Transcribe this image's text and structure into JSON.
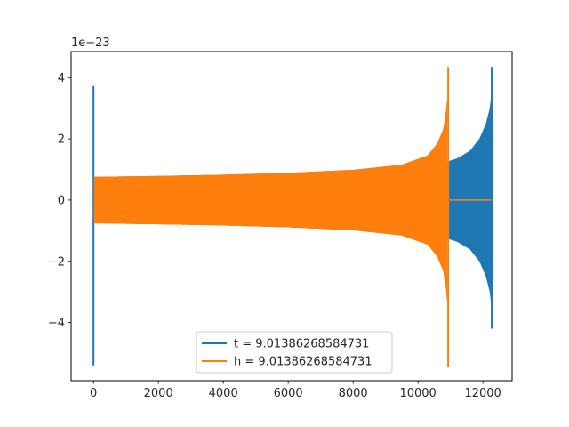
{
  "chart_data": {
    "type": "line",
    "offset_label": "1e−23",
    "x_ticks": [
      0,
      2000,
      4000,
      6000,
      8000,
      10000,
      12000
    ],
    "x_tick_labels": [
      "0",
      "2000",
      "4000",
      "6000",
      "8000",
      "10000",
      "12000"
    ],
    "y_ticks": [
      -4,
      -2,
      0,
      2,
      4
    ],
    "y_tick_labels": [
      "−4",
      "−2",
      "0",
      "2",
      "4"
    ],
    "xlim": [
      -690,
      12900
    ],
    "ylim": [
      -5.9,
      4.85
    ],
    "grid": false,
    "legend_position": "lower center",
    "series": [
      {
        "name": "t = 9.01386268584731",
        "color": "#1f77b4",
        "x_start": 0,
        "x_end": 12272,
        "initial_spike": {
          "x": 0,
          "min": -5.4,
          "max": 3.72
        },
        "envelope": [
          [
            20,
            0.75
          ],
          [
            2000,
            0.78
          ],
          [
            4000,
            0.82
          ],
          [
            6000,
            0.88
          ],
          [
            8000,
            0.98
          ],
          [
            9500,
            1.08
          ],
          [
            10500,
            1.2
          ],
          [
            10900,
            1.25
          ],
          [
            11200,
            1.35
          ],
          [
            11600,
            1.6
          ],
          [
            11900,
            2.0
          ],
          [
            12100,
            2.5
          ],
          [
            12220,
            3.0
          ],
          [
            12272,
            3.5
          ]
        ],
        "final_spike": {
          "x": 12272,
          "min": -4.2,
          "max": 4.35
        }
      },
      {
        "name": "h = 9.01386268584731",
        "color": "#ff7f0e",
        "x_start": 0,
        "x_end": 12272,
        "envelope": [
          [
            20,
            0.75
          ],
          [
            2000,
            0.78
          ],
          [
            4000,
            0.82
          ],
          [
            6000,
            0.88
          ],
          [
            8000,
            0.98
          ],
          [
            9500,
            1.15
          ],
          [
            10300,
            1.45
          ],
          [
            10600,
            1.85
          ],
          [
            10780,
            2.3
          ],
          [
            10860,
            2.8
          ],
          [
            10900,
            3.3
          ]
        ],
        "final_spike": {
          "x": 10930,
          "min": -5.45,
          "max": 4.35
        },
        "flat_after": {
          "x_from": 10940,
          "x_to": 12272,
          "y": 0
        }
      }
    ]
  }
}
